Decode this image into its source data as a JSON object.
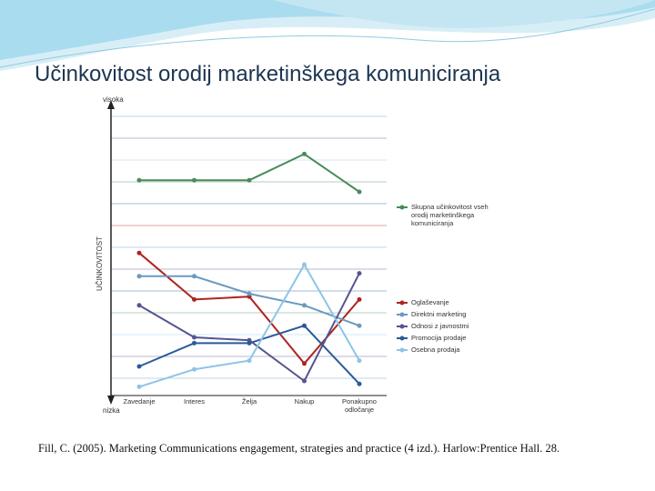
{
  "chart_data": {
    "type": "line",
    "title": "Učinkovitost orodij marketinškega komuniciranja",
    "y_label": "UČINKOVITOST",
    "y_top_label": "visoka",
    "y_bottom_label": "nizka",
    "categories": [
      "Zavedanje",
      "Interes",
      "Želja",
      "Nakup",
      "Ponakupno odločanje"
    ],
    "ylim": [
      0,
      10
    ],
    "series": [
      {
        "name": "Skupna učinkovitost vseh orodij marketinškega komuniciranja",
        "color": "#4a8a5a",
        "values": [
          7.4,
          7.4,
          7.4,
          8.3,
          7.0
        ]
      },
      {
        "name": "Oglaševanje",
        "color": "#b0231f",
        "values": [
          4.9,
          3.3,
          3.4,
          1.1,
          3.3
        ]
      },
      {
        "name": "Direktni marketing",
        "color": "#6a9ac0",
        "values": [
          4.1,
          4.1,
          3.5,
          3.1,
          2.4
        ]
      },
      {
        "name": "Odnosi z javnostmi",
        "color": "#55558f",
        "values": [
          3.1,
          2.0,
          1.9,
          0.5,
          4.2
        ]
      },
      {
        "name": "Promocija prodaje",
        "color": "#2a5a9a",
        "values": [
          1.0,
          1.8,
          1.8,
          2.4,
          0.4
        ]
      },
      {
        "name": "Osebna prodaja",
        "color": "#8ec4e6",
        "values": [
          0.3,
          0.9,
          1.2,
          4.5,
          1.2
        ]
      }
    ]
  },
  "citation": "Fill, C. (2005). Marketing Communications engagement, strategies and practice (4 izd.). Harlow:Prentice Hall. 28."
}
